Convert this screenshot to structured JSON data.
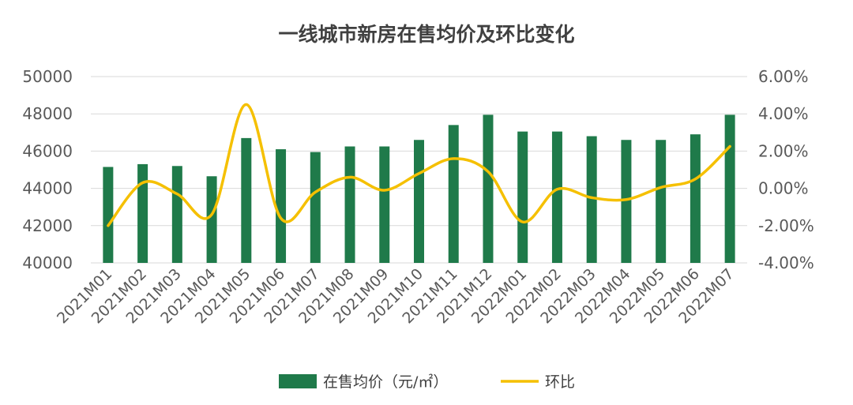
{
  "chart_data": {
    "type": "bar",
    "title": "一线城市新房在售均价及环比变化",
    "categories": [
      "2021M01",
      "2021M02",
      "2021M03",
      "2021M04",
      "2021M05",
      "2021M06",
      "2021M07",
      "2021M08",
      "2021M09",
      "2021M10",
      "2021M11",
      "2021M12",
      "2022M01",
      "2022M02",
      "2022M03",
      "2022M04",
      "2022M05",
      "2022M06",
      "2022M07"
    ],
    "series": [
      {
        "name": "在售均价（元/㎡）",
        "type": "bar",
        "axis": "left",
        "color": "#1f7a4a",
        "values": [
          45150,
          45300,
          45200,
          44650,
          46700,
          46100,
          45950,
          46250,
          46250,
          46600,
          47400,
          47950,
          47050,
          47050,
          46800,
          46600,
          46600,
          46900,
          47950
        ]
      },
      {
        "name": "环比",
        "type": "line",
        "axis": "right",
        "color": "#f5c000",
        "smooth": true,
        "values": [
          -2.0,
          0.3,
          -0.3,
          -1.4,
          4.5,
          -1.6,
          -0.2,
          0.6,
          -0.1,
          0.8,
          1.6,
          0.9,
          -1.8,
          -0.05,
          -0.5,
          -0.6,
          0.05,
          0.5,
          2.25
        ]
      }
    ],
    "left_axis": {
      "ylim": [
        40000,
        50000
      ],
      "ticks": [
        "40000",
        "42000",
        "44000",
        "46000",
        "48000",
        "50000"
      ]
    },
    "right_axis": {
      "ylim": [
        -4,
        6
      ],
      "ticks": [
        "-4.00%",
        "-2.00%",
        "0.00%",
        "2.00%",
        "4.00%",
        "6.00%"
      ]
    },
    "grid": true,
    "legend_position": "bottom"
  }
}
